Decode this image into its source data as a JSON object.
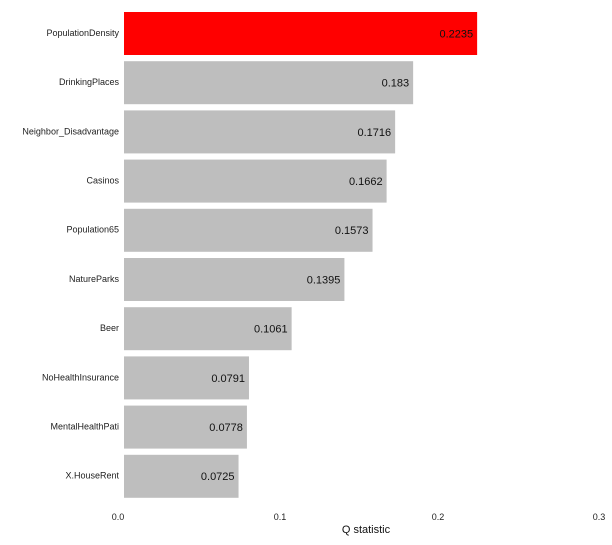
{
  "chart_data": {
    "type": "bar",
    "orientation": "horizontal",
    "categories": [
      "PopulationDensity",
      "DrinkingPlaces",
      "Neighbor_Disadvantage",
      "Casinos",
      "Population65",
      "NatureParks",
      "Beer",
      "NoHealthInsurance",
      "MentalHealthPati",
      "X.HouseRent"
    ],
    "values": [
      0.2235,
      0.183,
      0.1716,
      0.1662,
      0.1573,
      0.1395,
      0.1061,
      0.0791,
      0.0778,
      0.0725
    ],
    "value_labels": [
      "0.2235",
      "0.183",
      "0.1716",
      "0.1662",
      "0.1573",
      "0.1395",
      "0.1061",
      "0.0791",
      "0.0778",
      "0.0725"
    ],
    "highlight_index": 0,
    "xlim": [
      0,
      0.3
    ],
    "xticks": [
      0,
      0.1,
      0.2,
      0.3
    ],
    "xtick_labels": [
      "0.0",
      "0.1",
      "0.2",
      "0.3"
    ],
    "xlabel": "Q statistic",
    "ylabel": "",
    "title": "",
    "grid": false,
    "legend": "none",
    "colors": {
      "highlight": "#ff0000",
      "default": "#bebebe",
      "text": "#111111"
    }
  }
}
